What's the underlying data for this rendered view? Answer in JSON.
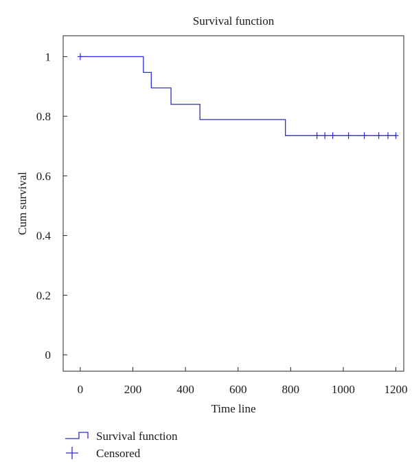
{
  "chart_data": {
    "type": "line",
    "title": "Survival function",
    "xlabel": "Time line",
    "ylabel": "Cum survival",
    "xlim": [
      -65,
      1230
    ],
    "ylim": [
      -0.055,
      1.07
    ],
    "xticks": [
      0,
      200,
      400,
      600,
      800,
      1000,
      1200
    ],
    "yticks": [
      0,
      0.2,
      0.4,
      0.6,
      0.8,
      1
    ],
    "xtick_labels": [
      "0",
      "200",
      "400",
      "600",
      "800",
      "1000",
      "1200"
    ],
    "ytick_labels": [
      "0",
      "0.2",
      "0.4",
      "0.6",
      "0.8",
      "1"
    ],
    "grid": false,
    "legend_position": "bottom-left",
    "color": "#2b2bd0",
    "series": [
      {
        "name": "Survival function",
        "kind": "step",
        "x": [
          0,
          240,
          270,
          345,
          455,
          780,
          1200
        ],
        "y": [
          1,
          0.947,
          0.895,
          0.84,
          0.789,
          0.735,
          0.735
        ]
      },
      {
        "name": "Censored",
        "kind": "marker-plus",
        "x": [
          0,
          900,
          930,
          960,
          1020,
          1080,
          1135,
          1170,
          1200
        ],
        "y": [
          1,
          0.735,
          0.735,
          0.735,
          0.735,
          0.735,
          0.735,
          0.735,
          0.735
        ]
      }
    ]
  }
}
